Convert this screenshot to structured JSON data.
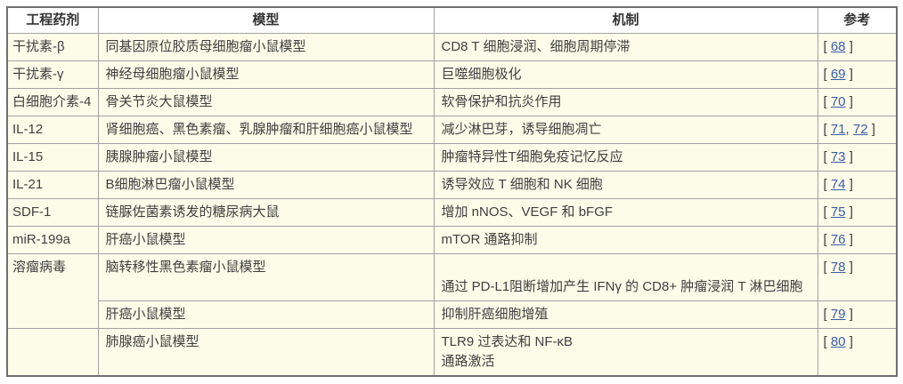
{
  "table": {
    "header": {
      "agent": "工程药剂",
      "model": "模型",
      "mechanism": "机制",
      "reference": "参考"
    },
    "ref_open": "[ ",
    "ref_close": " ]",
    "ref_sep": ", ",
    "rows": [
      {
        "agent": "干扰素-β",
        "model": "同基因原位胶质母细胞瘤小鼠模型",
        "mechanism": [
          "CD8 T 细胞浸润、细胞周期停滞"
        ],
        "refs": [
          "68"
        ]
      },
      {
        "agent": "干扰素-γ",
        "model": "神经母细胞瘤小鼠模型",
        "mechanism": [
          "巨噬细胞极化"
        ],
        "refs": [
          "69"
        ]
      },
      {
        "agent": "白细胞介素-4",
        "model": "骨关节炎大鼠模型",
        "mechanism": [
          "软骨保护和抗炎作用"
        ],
        "refs": [
          "70"
        ]
      },
      {
        "agent": "IL-12",
        "model": "肾细胞癌、黑色素瘤、乳腺肿瘤和肝细胞癌小鼠模型",
        "mechanism": [
          "减少淋巴芽，诱导细胞凋亡"
        ],
        "refs": [
          "71",
          "72"
        ]
      },
      {
        "agent": "IL-15",
        "model": "胰腺肿瘤小鼠模型",
        "mechanism": [
          "肿瘤特异性T细胞免疫记忆反应"
        ],
        "refs": [
          "73"
        ]
      },
      {
        "agent": "IL-21",
        "model": "B细胞淋巴瘤小鼠模型",
        "mechanism": [
          "诱导效应 T 细胞和 NK 细胞"
        ],
        "refs": [
          "74"
        ]
      },
      {
        "agent": "SDF-1",
        "model": "链脲佐菌素诱发的糖尿病大鼠",
        "mechanism": [
          "增加 nNOS、VEGF 和 bFGF"
        ],
        "refs": [
          "75"
        ]
      },
      {
        "agent": "miR-199a",
        "model": "肝癌小鼠模型",
        "mechanism": [
          "mTOR 通路抑制"
        ],
        "refs": [
          "76"
        ]
      },
      {
        "agent": "溶瘤病毒",
        "model": "脑转移性黑色素瘤小鼠模型",
        "mechanism": [
          "",
          "通过 PD-L1阻断增加产生 IFNγ 的 CD8+ 肿瘤浸润 T 淋巴细胞"
        ],
        "refs": [
          "78"
        ]
      },
      {
        "agent": "",
        "model": "肝癌小鼠模型",
        "mechanism": [
          "抑制肝癌细胞增殖"
        ],
        "refs": [
          "79"
        ]
      },
      {
        "agent": "",
        "model": "肺腺癌小鼠模型",
        "mechanism": [
          "TLR9 过表达和 NF-κB",
          "通路激活"
        ],
        "refs": [
          "80"
        ]
      }
    ]
  }
}
